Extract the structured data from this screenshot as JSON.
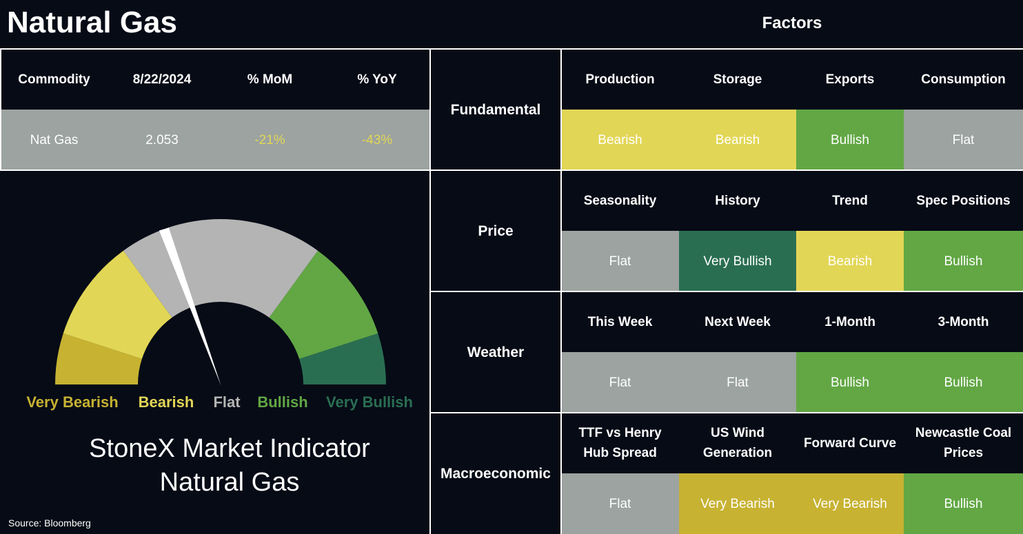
{
  "header": {
    "title": "Natural Gas",
    "factors_title": "Factors"
  },
  "summary": {
    "headers": [
      "Commodity",
      "8/22/2024",
      "% MoM",
      "% YoY"
    ],
    "row": [
      "Nat Gas",
      "2.053",
      "-21%",
      "-43%"
    ]
  },
  "gauge": {
    "labels": [
      "Very Bearish",
      "Bearish",
      "Flat",
      "Bullish",
      "Very Bullish"
    ],
    "colors": [
      "#c7b232",
      "#e2d656",
      "#b4b4b4",
      "#62a744",
      "#2a6e52"
    ],
    "caption": [
      "StoneX Market Indicator",
      "Natural Gas"
    ]
  },
  "source": "Source: Bloomberg",
  "factors": {
    "groups": [
      {
        "name": "Fundamental",
        "items": [
          {
            "label": "Production",
            "status": "Bearish",
            "color": "#e2d656"
          },
          {
            "label": "Storage",
            "status": "Bearish",
            "color": "#e2d656"
          },
          {
            "label": "Exports",
            "status": "Bullish",
            "color": "#62a744"
          },
          {
            "label": "Consumption",
            "status": "Flat",
            "color": "#9ca3a0"
          }
        ]
      },
      {
        "name": "Price",
        "items": [
          {
            "label": "Seasonality",
            "status": "Flat",
            "color": "#9ca3a0"
          },
          {
            "label": "History",
            "status": "Very Bullish",
            "color": "#2a6e52"
          },
          {
            "label": "Trend",
            "status": "Bearish",
            "color": "#e2d656"
          },
          {
            "label": "Spec Positions",
            "status": "Bullish",
            "color": "#62a744"
          }
        ]
      },
      {
        "name": "Weather",
        "items": [
          {
            "label": "This Week",
            "status": "Flat",
            "color": "#9ca3a0"
          },
          {
            "label": "Next Week",
            "status": "Flat",
            "color": "#9ca3a0"
          },
          {
            "label": "1-Month",
            "status": "Bullish",
            "color": "#62a744"
          },
          {
            "label": "3-Month",
            "status": "Bullish",
            "color": "#62a744"
          }
        ]
      },
      {
        "name": "Macroeconomic",
        "items": [
          {
            "label": "TTF vs Henry Hub Spread",
            "status": "Flat",
            "color": "#9ca3a0"
          },
          {
            "label": "US Wind Generation",
            "status": "Very Bearish",
            "color": "#c7b232"
          },
          {
            "label": "Forward Curve",
            "status": "Very Bearish",
            "color": "#c7b232"
          },
          {
            "label": "Newcastle Coal Prices",
            "status": "Bullish",
            "color": "#62a744"
          }
        ]
      }
    ]
  }
}
